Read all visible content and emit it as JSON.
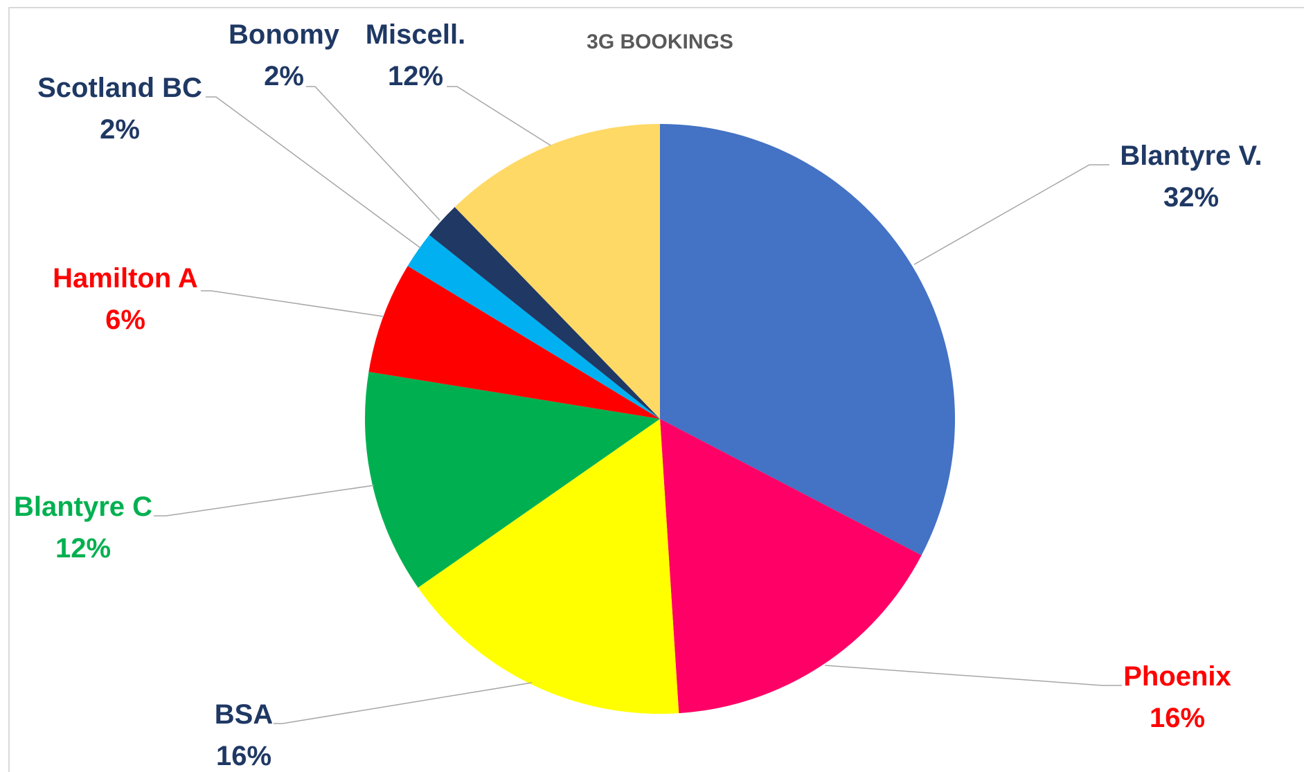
{
  "chart_data": {
    "type": "pie",
    "title": "3G BOOKINGS",
    "slices": [
      {
        "name": "Blantyre V.",
        "value": 32,
        "label": "32%",
        "color": "#4472C4",
        "label_color": "#1F3864"
      },
      {
        "name": "Phoenix",
        "value": 16,
        "label": "16%",
        "color": "#FF0066",
        "label_color": "#FF0000"
      },
      {
        "name": "BSA",
        "value": 16,
        "label": "16%",
        "color": "#FFFF00",
        "label_color": "#1F3864"
      },
      {
        "name": "Blantyre C",
        "value": 12,
        "label": "12%",
        "color": "#00B050",
        "label_color": "#00B050"
      },
      {
        "name": "Hamilton A",
        "value": 6,
        "label": "6%",
        "color": "#FF0000",
        "label_color": "#FF0000"
      },
      {
        "name": "Scotland BC",
        "value": 2,
        "label": "2%",
        "color": "#00B0F0",
        "label_color": "#1F3864"
      },
      {
        "name": "Bonomy",
        "value": 2,
        "label": "2%",
        "color": "#203864",
        "label_color": "#1F3864"
      },
      {
        "name": "Miscell.",
        "value": 12,
        "label": "12%",
        "color": "#FFD966",
        "label_color": "#1F3864"
      }
    ],
    "legend": "none",
    "leader_line_color": "#A6A6A6"
  }
}
